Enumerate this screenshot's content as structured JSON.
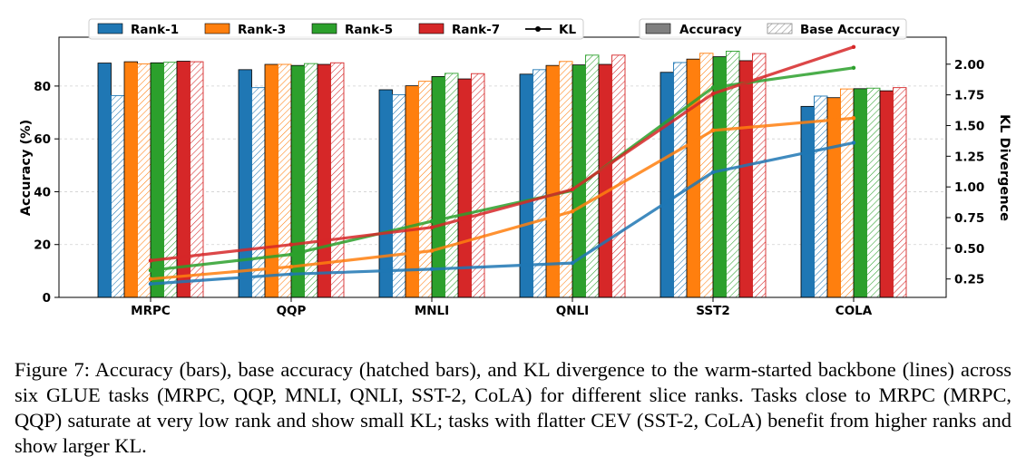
{
  "chart_data": {
    "type": "bar",
    "categories": [
      "MRPC",
      "QQP",
      "MNLI",
      "QNLI",
      "SST2",
      "COLA"
    ],
    "ylabel": "Accuracy (%)",
    "ylim": [
      0,
      98.5
    ],
    "yticks": [
      0,
      20,
      40,
      60,
      80
    ],
    "y2label": "KL Divergence",
    "y2lim": [
      0.1,
      2.22
    ],
    "y2ticks": [
      "0.25",
      "0.50",
      "0.75",
      "1.00",
      "1.25",
      "1.50",
      "1.75",
      "2.00"
    ],
    "series": [
      {
        "name": "Rank-1",
        "color": "#1f77b4",
        "accuracy": [
          88.7,
          86.2,
          78.6,
          84.5,
          85.2,
          72.3
        ],
        "base_accuracy": [
          76.4,
          79.4,
          76.7,
          86.2,
          88.9,
          76.2
        ],
        "kl": [
          0.21,
          0.29,
          0.33,
          0.38,
          1.12,
          1.36
        ]
      },
      {
        "name": "Rank-3",
        "color": "#ff7f0e",
        "accuracy": [
          89.2,
          88.2,
          80.1,
          87.8,
          90.2,
          75.6
        ],
        "base_accuracy": [
          88.4,
          88.2,
          81.8,
          89.3,
          92.4,
          78.9
        ],
        "kl": [
          0.25,
          0.35,
          0.48,
          0.8,
          1.46,
          1.56
        ]
      },
      {
        "name": "Rank-5",
        "color": "#2ca02c",
        "accuracy": [
          88.8,
          87.8,
          83.6,
          88.0,
          91.1,
          79.0
        ],
        "base_accuracy": [
          89.0,
          88.5,
          84.8,
          91.7,
          93.2,
          79.2
        ],
        "kl": [
          0.32,
          0.45,
          0.72,
          0.97,
          1.81,
          1.97
        ]
      },
      {
        "name": "Rank-7",
        "color": "#d62728",
        "accuracy": [
          89.4,
          88.2,
          82.7,
          88.2,
          89.6,
          78.2
        ],
        "base_accuracy": [
          89.2,
          88.8,
          84.7,
          91.7,
          92.3,
          79.4
        ],
        "kl": [
          0.4,
          0.53,
          0.67,
          0.98,
          1.76,
          2.14
        ]
      }
    ],
    "legend": {
      "series_labels": [
        "Rank-1",
        "Rank-3",
        "Rank-5",
        "Rank-7",
        "KL"
      ],
      "style_labels": [
        "Accuracy",
        "Base Accuracy"
      ],
      "placement": "top"
    },
    "grid": true
  },
  "caption": "Figure 7: Accuracy (bars), base accuracy (hatched bars), and KL divergence to the warm-started backbone (lines) across six GLUE tasks (MRPC, QQP, MNLI, QNLI, SST-2, CoLA) for different slice ranks. Tasks close to MRPC (MRPC, QQP) saturate at very low rank and show small KL; tasks with flatter CEV (SST-2, CoLA) benefit from higher ranks and show larger KL."
}
